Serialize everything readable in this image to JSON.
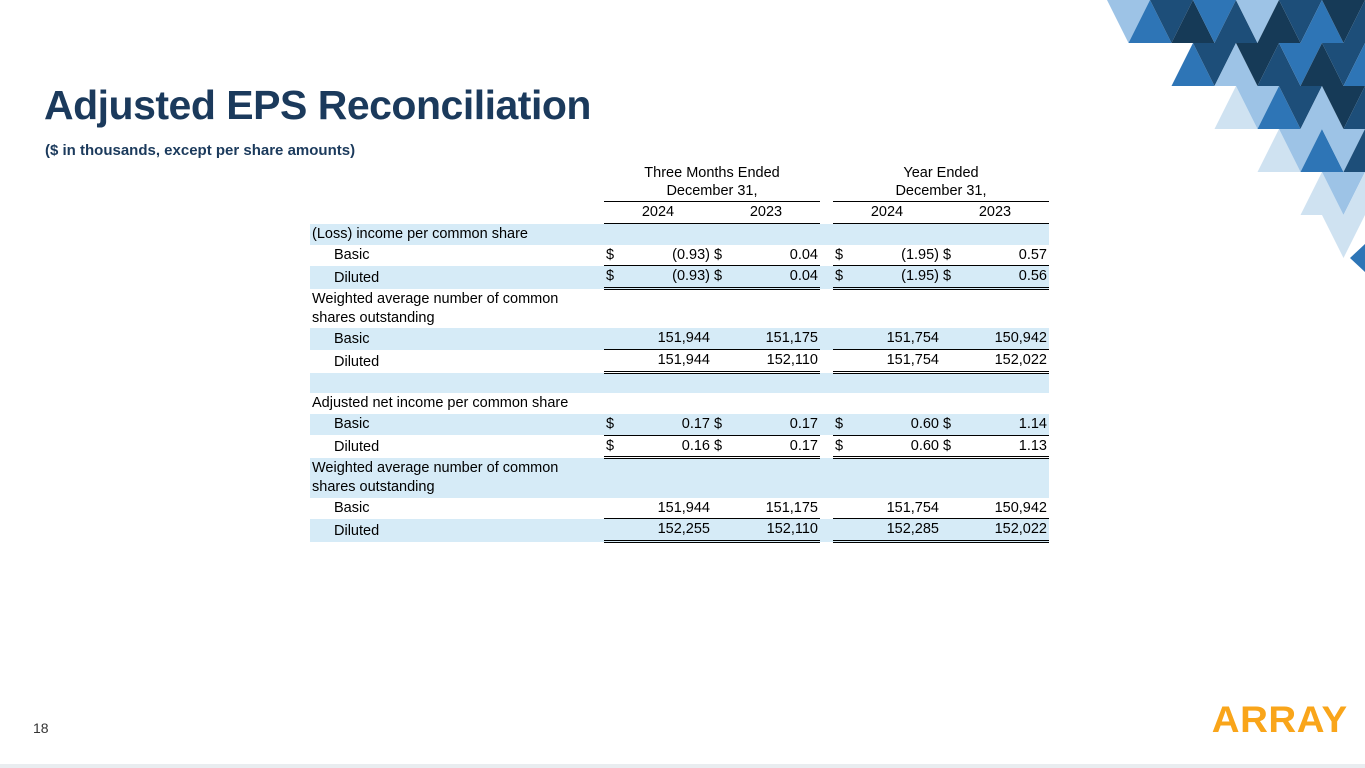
{
  "slide": {
    "title": "Adjusted EPS Reconciliation",
    "subtitle": "($ in thousands, except per share amounts)",
    "page_number": "18",
    "logo_text": "ARRAY"
  },
  "colors": {
    "title_navy": "#1b3a5c",
    "row_shade_blue": "#d6ebf7",
    "logo_orange": "#F9A51A",
    "triangle_dark_navy": "#163a57",
    "triangle_navy": "#1d4e79",
    "triangle_mid_blue": "#2e75b6",
    "triangle_light_blue": "#9dc3e6",
    "triangle_pale_blue": "#cfe2f1"
  },
  "table": {
    "groups": [
      {
        "line1": "Three Months Ended",
        "line2": "December 31,"
      },
      {
        "line1": "Year Ended",
        "line2": "December 31,"
      }
    ],
    "years": [
      "2024",
      "2023",
      "2024",
      "2023"
    ],
    "rows": [
      {
        "label": "(Loss) income per common share",
        "kind": "section",
        "shaded": true
      },
      {
        "label": "Basic",
        "kind": "data",
        "indent": true,
        "dollar": true,
        "shaded": false,
        "underline": "single",
        "values": [
          "(0.93)",
          "0.04",
          "(1.95)",
          "0.57"
        ]
      },
      {
        "label": "Diluted",
        "kind": "data",
        "indent": true,
        "dollar": true,
        "shaded": true,
        "underline": "double",
        "values": [
          "(0.93)",
          "0.04",
          "(1.95)",
          "0.56"
        ]
      },
      {
        "label": "Weighted average number of common shares outstanding",
        "kind": "section",
        "shaded": false
      },
      {
        "label": "Basic",
        "kind": "data",
        "indent": true,
        "dollar": false,
        "shaded": true,
        "underline": "single",
        "values": [
          "151,944",
          "151,175",
          "151,754",
          "150,942"
        ]
      },
      {
        "label": "Diluted",
        "kind": "data",
        "indent": true,
        "dollar": false,
        "shaded": false,
        "underline": "double",
        "values": [
          "151,944",
          "152,110",
          "151,754",
          "152,022"
        ]
      },
      {
        "label": "",
        "kind": "spacer",
        "shaded": true
      },
      {
        "label": "Adjusted net income per common share",
        "kind": "section",
        "shaded": false
      },
      {
        "label": "Basic",
        "kind": "data",
        "indent": true,
        "dollar": true,
        "shaded": true,
        "underline": "single",
        "values": [
          "0.17",
          "0.17",
          "0.60",
          "1.14"
        ]
      },
      {
        "label": "Diluted",
        "kind": "data",
        "indent": true,
        "dollar": true,
        "shaded": false,
        "underline": "double",
        "values": [
          "0.16",
          "0.17",
          "0.60",
          "1.13"
        ]
      },
      {
        "label": "Weighted average number of common shares outstanding",
        "kind": "section",
        "shaded": true
      },
      {
        "label": "Basic",
        "kind": "data",
        "indent": true,
        "dollar": false,
        "shaded": false,
        "underline": "single",
        "values": [
          "151,944",
          "151,175",
          "151,754",
          "150,942"
        ]
      },
      {
        "label": "Diluted",
        "kind": "data",
        "indent": true,
        "dollar": false,
        "shaded": true,
        "underline": "double",
        "values": [
          "152,255",
          "152,110",
          "152,285",
          "152,022"
        ]
      }
    ]
  }
}
